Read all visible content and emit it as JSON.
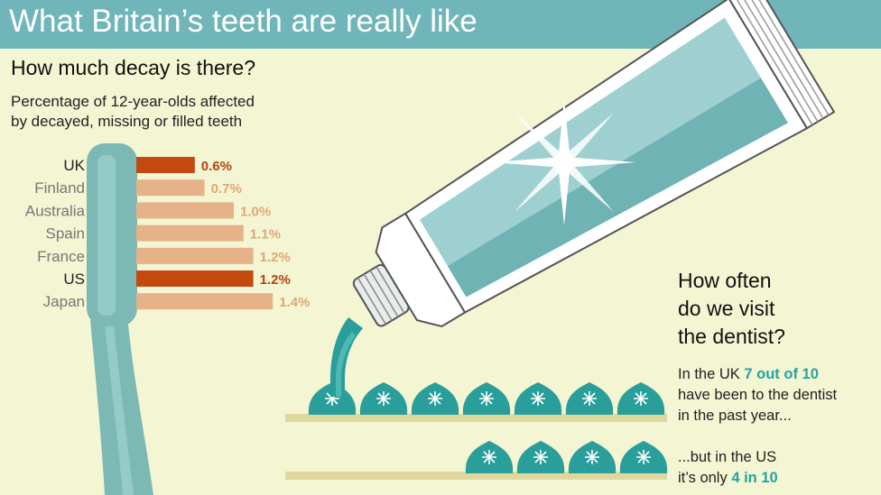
{
  "header": {
    "title": "What Britain’s teeth are really like"
  },
  "decay": {
    "subtitle": "How much decay is there?",
    "description_line1": "Percentage of 12-year-olds affected",
    "description_line2": "by decayed, missing or filled teeth"
  },
  "chart_data": {
    "type": "bar",
    "orientation": "horizontal",
    "categories": [
      "UK",
      "Finland",
      "Australia",
      "Spain",
      "France",
      "US",
      "Japan"
    ],
    "values": [
      0.6,
      0.7,
      1.0,
      1.1,
      1.2,
      1.2,
      1.4
    ],
    "value_labels": [
      "0.6%",
      "0.7%",
      "1.0%",
      "1.1%",
      "1.2%",
      "1.2%",
      "1.4%"
    ],
    "highlighted": [
      "UK",
      "US"
    ],
    "colors": {
      "highlight": "#c4490f",
      "normal": "#e6b287",
      "label_normal": "#dfa876",
      "label_highlight": "#b8420c",
      "cat_highlight": "#222222",
      "cat_normal": "#777777"
    }
  },
  "visits": {
    "subtitle_line1": "How often",
    "subtitle_line2": "do we visit",
    "subtitle_line3": "the dentist?",
    "uk_pre": "In the UK ",
    "uk_highlight": "7 out of 10",
    "uk_line2": "have been to the dentist",
    "uk_line3": "in the past year...",
    "uk_count": 7,
    "us_line1": "...but in the US",
    "us_pre": "it’s only ",
    "us_highlight": "4 in 10",
    "us_count": 4
  },
  "colors": {
    "header": "#6fb5b9",
    "background": "#f3f5d3",
    "accent": "#23a4a3",
    "shelf": "#e0d79e",
    "paste": "#2a9e9a"
  }
}
